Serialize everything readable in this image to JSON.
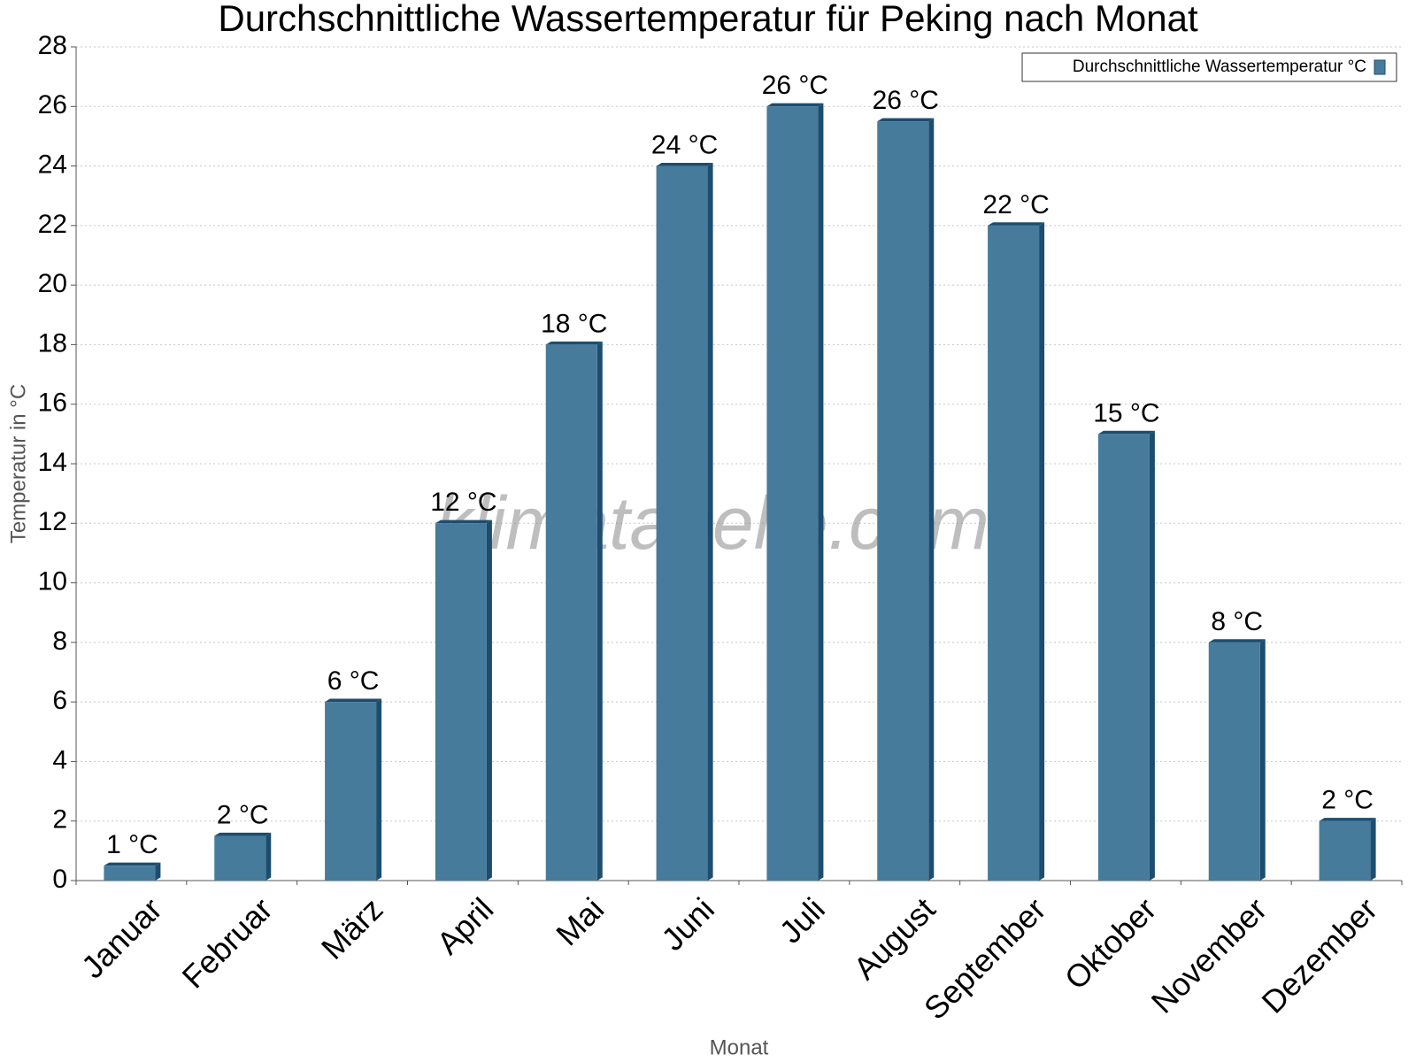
{
  "chart_data": {
    "type": "bar",
    "title": "Durchschnittliche Wassertemperatur für Peking nach Monat",
    "x_label": "Monat",
    "y_label": "Temperatur in °C",
    "watermark": "klimatabelle.com",
    "categories": [
      "Januar",
      "Februar",
      "März",
      "April",
      "Mai",
      "Juni",
      "Juli",
      "August",
      "September",
      "Oktober",
      "November",
      "Dezember"
    ],
    "series": [
      {
        "name": "Durchschnittliche Wassertemperatur °C",
        "color": "#467b9c",
        "values": [
          0.5,
          1.5,
          6,
          12,
          18,
          24,
          26,
          25.5,
          22,
          15,
          8,
          2
        ],
        "value_labels": [
          "1 °C",
          "2 °C",
          "6 °C",
          "12 °C",
          "18 °C",
          "24 °C",
          "26 °C",
          "26 °C",
          "22 °C",
          "15 °C",
          "8 °C",
          "2 °C"
        ]
      }
    ],
    "ylim": [
      0,
      28
    ],
    "yticks": [
      0,
      2,
      4,
      6,
      8,
      10,
      12,
      14,
      16,
      18,
      20,
      22,
      24,
      26,
      28
    ],
    "grid": true,
    "legend": "top-right"
  }
}
